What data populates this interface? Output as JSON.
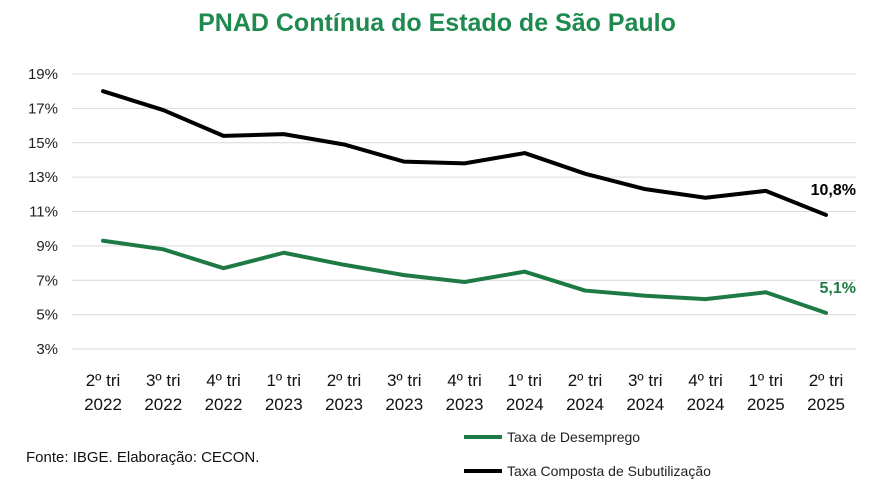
{
  "chart_data": {
    "type": "line",
    "title": "PNAD Contínua do Estado de São Paulo",
    "categories": [
      [
        "2º tri",
        "2022"
      ],
      [
        "3º tri",
        "2022"
      ],
      [
        "4º tri",
        "2022"
      ],
      [
        "1º tri",
        "2023"
      ],
      [
        "2º tri",
        "2023"
      ],
      [
        "3º tri",
        "2023"
      ],
      [
        "4º tri",
        "2023"
      ],
      [
        "1º tri",
        "2024"
      ],
      [
        "2º tri",
        "2024"
      ],
      [
        "3º tri",
        "2024"
      ],
      [
        "4º tri",
        "2024"
      ],
      [
        "1º tri",
        "2025"
      ],
      [
        "2º tri",
        "2025"
      ]
    ],
    "y_ticks": [
      "3%",
      "5%",
      "7%",
      "9%",
      "11%",
      "13%",
      "15%",
      "17%",
      "19%"
    ],
    "ylim": [
      3,
      19
    ],
    "grid": true,
    "legend_position": "bottom-right",
    "series": [
      {
        "name": "Taxa de Desemprego",
        "color": "#1e7a45",
        "values": [
          9.3,
          8.8,
          7.7,
          8.6,
          7.9,
          7.3,
          6.9,
          7.5,
          6.4,
          6.1,
          5.9,
          6.3,
          5.1
        ],
        "end_label": "5,1%"
      },
      {
        "name": "Taxa Composta de Subutilização",
        "color": "#000000",
        "values": [
          18.0,
          16.9,
          15.4,
          15.5,
          14.9,
          13.9,
          13.8,
          14.4,
          13.2,
          12.3,
          11.8,
          12.2,
          10.8
        ],
        "end_label": "10,8%"
      }
    ]
  },
  "source_text": "Fonte: IBGE. Elaboração: CECON.",
  "colors": {
    "title": "#1e8a4f",
    "grid": "#d9d9d9"
  }
}
